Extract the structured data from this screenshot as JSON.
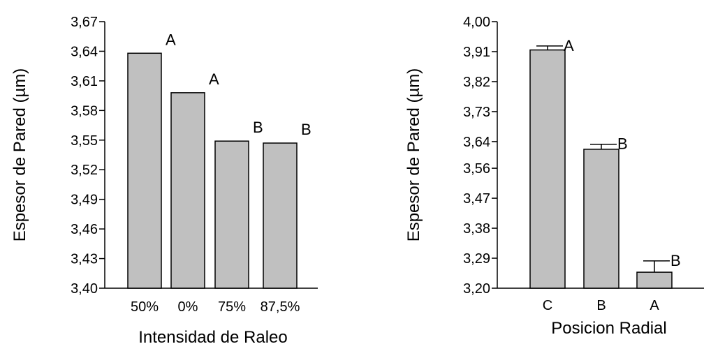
{
  "chart_data": [
    {
      "type": "bar",
      "categories": [
        "50%",
        "0%",
        "75%",
        "87,5%"
      ],
      "values": [
        3.638,
        3.598,
        3.549,
        3.547
      ],
      "bar_letters": [
        "A",
        "A",
        "B",
        "B"
      ],
      "xlabel": "Intensidad de Raleo",
      "ylabel": "Espesor de Pared (µm)",
      "ylim": [
        3.4,
        3.67
      ],
      "yticks": [
        3.4,
        3.43,
        3.46,
        3.49,
        3.52,
        3.55,
        3.58,
        3.61,
        3.64,
        3.67
      ],
      "ytick_labels": [
        "3,40",
        "3,43",
        "3,46",
        "3,49",
        "3,52",
        "3,55",
        "3,58",
        "3,61",
        "3,64",
        "3,67"
      ],
      "bar_color": "#c0c0c0",
      "grid": false
    },
    {
      "type": "bar",
      "categories": [
        "C",
        "B",
        "A"
      ],
      "values": [
        3.915,
        3.617,
        3.248
      ],
      "error_upper": [
        3.927,
        3.632,
        3.282
      ],
      "bar_letters": [
        "A",
        "B",
        "B"
      ],
      "xlabel": "Posicion Radial",
      "ylabel": "Espesor de Pared (µm)",
      "ylim": [
        3.2,
        4.0
      ],
      "yticks": [
        3.2,
        3.29,
        3.38,
        3.47,
        3.56,
        3.64,
        3.73,
        3.82,
        3.91,
        4.0
      ],
      "ytick_labels": [
        "3,20",
        "3,29",
        "3,38",
        "3,47",
        "3,56",
        "3,64",
        "3,73",
        "3,82",
        "3,91",
        "4,00"
      ],
      "bar_color": "#c0c0c0",
      "grid": false
    }
  ]
}
